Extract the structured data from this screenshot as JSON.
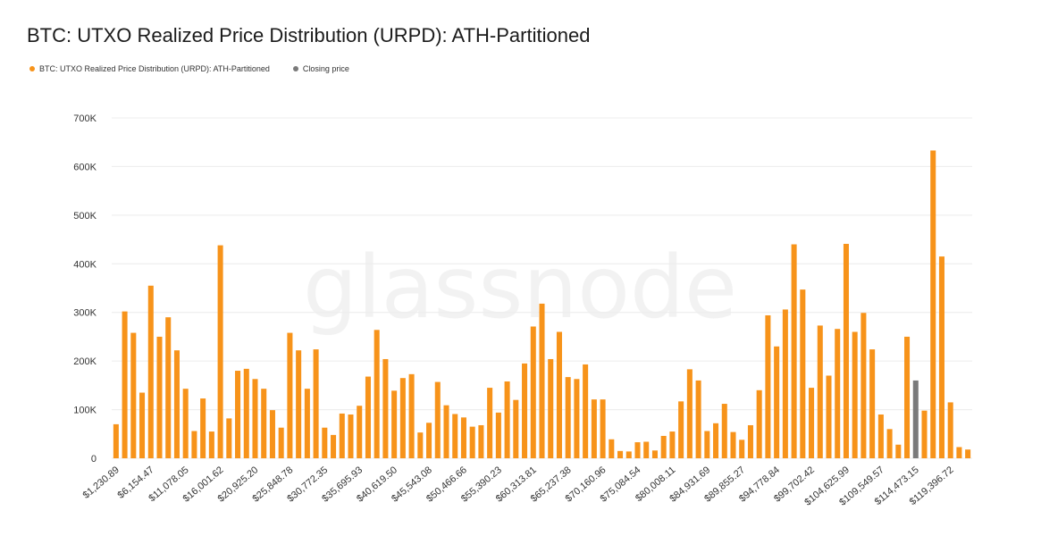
{
  "title": "BTC: UTXO Realized Price Distribution (URPD): ATH-Partitioned",
  "legend": [
    {
      "label": "BTC: UTXO Realized Price Distribution (URPD): ATH-Partitioned",
      "color": "#f7931a"
    },
    {
      "label": "Closing price",
      "color": "#7a7a7a"
    }
  ],
  "watermark": "glassnode",
  "chart_data": {
    "type": "bar",
    "title": "BTC: UTXO Realized Price Distribution (URPD): ATH-Partitioned",
    "xlabel": "",
    "ylabel": "",
    "ylim": [
      0,
      700000
    ],
    "yticks": [
      0,
      100000,
      200000,
      300000,
      400000,
      500000,
      600000,
      700000
    ],
    "ytick_labels": [
      "0",
      "100K",
      "200K",
      "300K",
      "400K",
      "500K",
      "600K",
      "700K"
    ],
    "xtick_labels": [
      "$1,230.89",
      "$6,154.47",
      "$11,078.05",
      "$16,001.62",
      "$20,925.20",
      "$25,848.78",
      "$30,772.35",
      "$35,695.93",
      "$40,619.50",
      "$45,543.08",
      "$50,466.66",
      "$55,390.23",
      "$60,313.81",
      "$65,237.38",
      "$70,160.96",
      "$75,084.54",
      "$80,008.11",
      "$84,931.69",
      "$89,855.27",
      "$94,778.84",
      "$99,702.42",
      "$104,625.99",
      "$109,549.57",
      "$114,473.15",
      "$119,396.72"
    ],
    "bar_count": 99,
    "closing_price_index": 92,
    "grid": true,
    "legend_position": "top-left",
    "series": [
      {
        "name": "BTC: UTXO Realized Price Distribution (URPD): ATH-Partitioned",
        "color": "#f7931a",
        "values": [
          70000,
          302000,
          258000,
          135000,
          355000,
          250000,
          290000,
          222000,
          143000,
          56000,
          123000,
          55000,
          438000,
          82000,
          180000,
          184000,
          163000,
          143000,
          99000,
          63000,
          258000,
          222000,
          143000,
          224000,
          63000,
          48000,
          92000,
          90000,
          108000,
          168000,
          264000,
          204000,
          139000,
          165000,
          173000,
          53000,
          73000,
          157000,
          109000,
          91000,
          84000,
          65000,
          68000,
          145000,
          94000,
          158000,
          120000,
          195000,
          271000,
          318000,
          204000,
          260000,
          167000,
          163000,
          193000,
          121000,
          121000,
          39000,
          15000,
          14000,
          33000,
          34000,
          16000,
          46000,
          55000,
          117000,
          183000,
          160000,
          56000,
          72000,
          112000,
          54000,
          38000,
          68000,
          140000,
          294000,
          230000,
          306000,
          440000,
          347000,
          145000,
          273000,
          170000,
          266000,
          441000,
          260000,
          299000,
          224000,
          90000,
          60000,
          28000,
          250000,
          160000,
          98000,
          633000,
          415000,
          115000,
          23000,
          18000
        ]
      }
    ]
  }
}
